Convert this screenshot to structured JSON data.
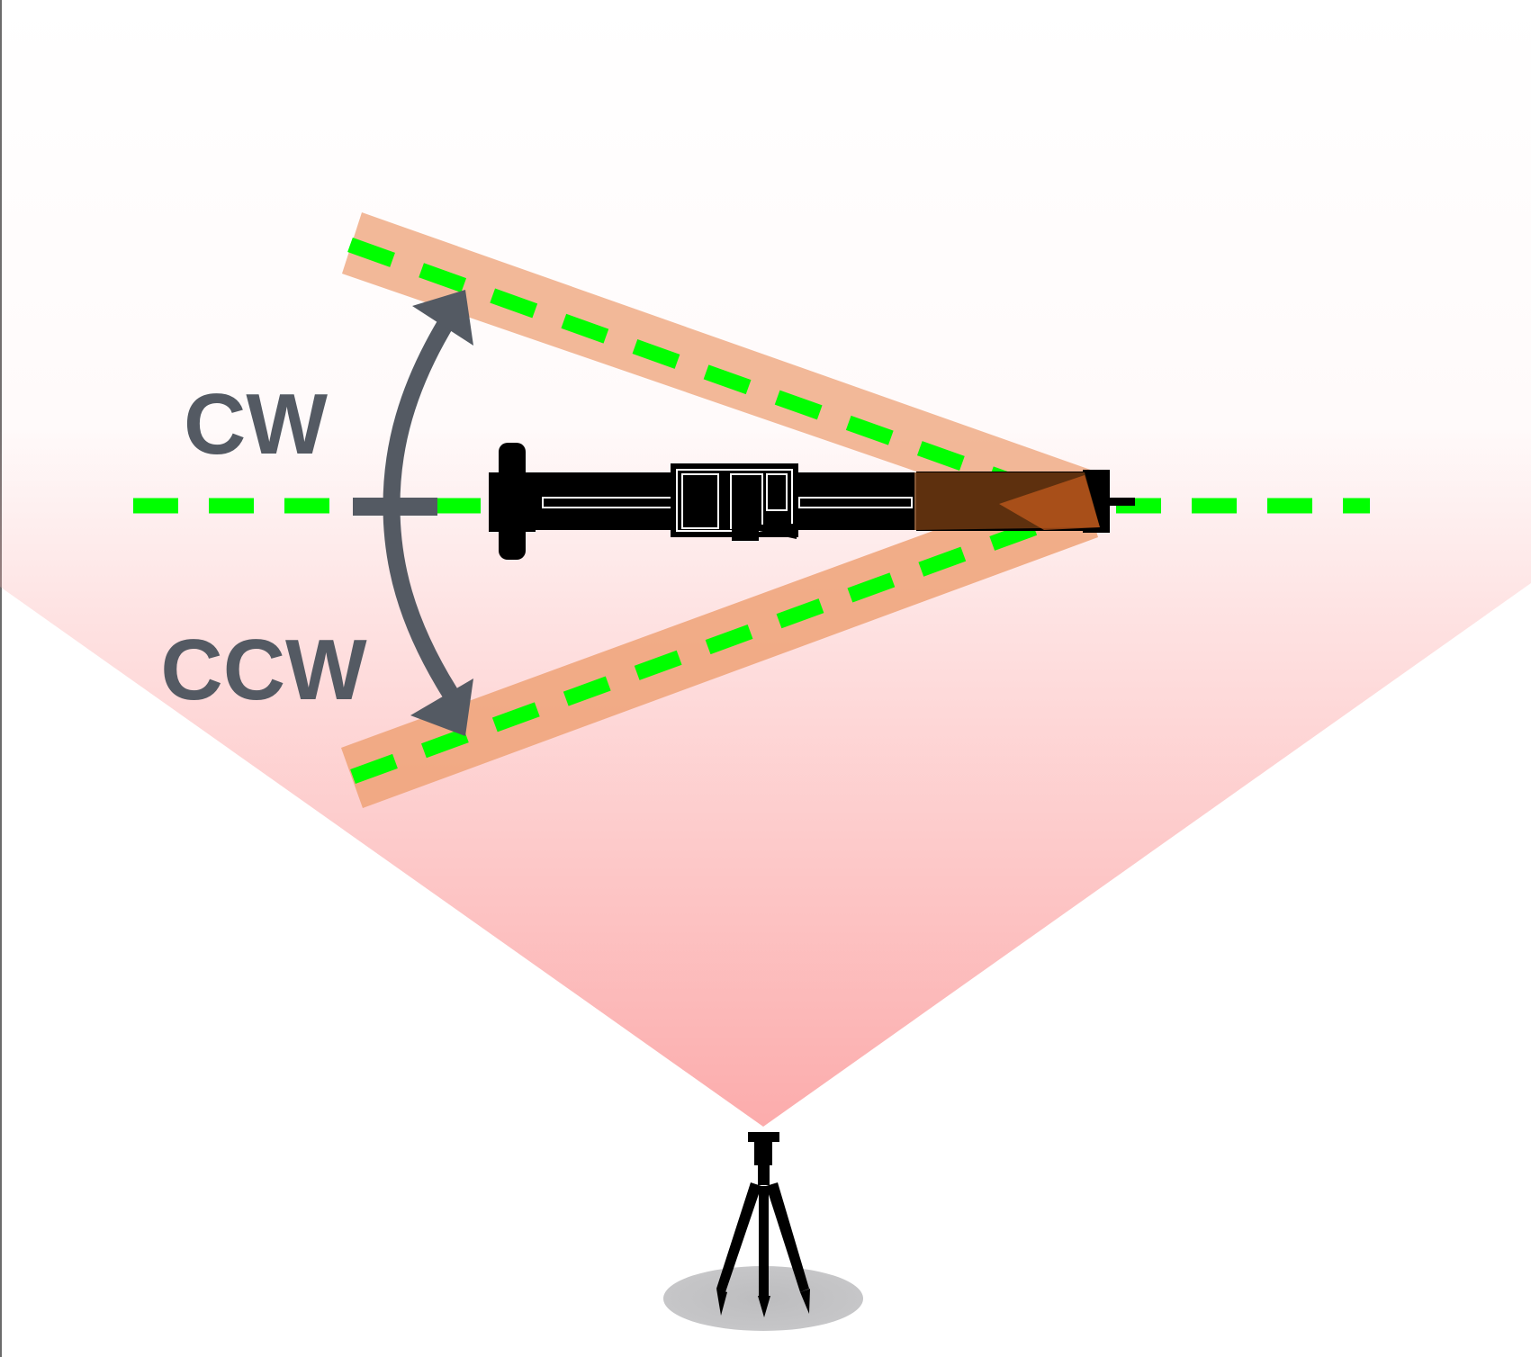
{
  "labels": {
    "cw": "CW",
    "ccw": "CCW"
  },
  "colors": {
    "view_cone": "#fcacac",
    "swing_band": "#eea277",
    "center_line": "#00ff00",
    "arrow": "#545a63",
    "instrument": "#000000",
    "overlap": "#6f3810",
    "tripod_shadow": "#c2c2c4"
  },
  "icons": {
    "device": "rail-instrument-icon",
    "camera": "tripod-camera-icon",
    "rotation": "double-headed-curved-arrow-icon"
  }
}
